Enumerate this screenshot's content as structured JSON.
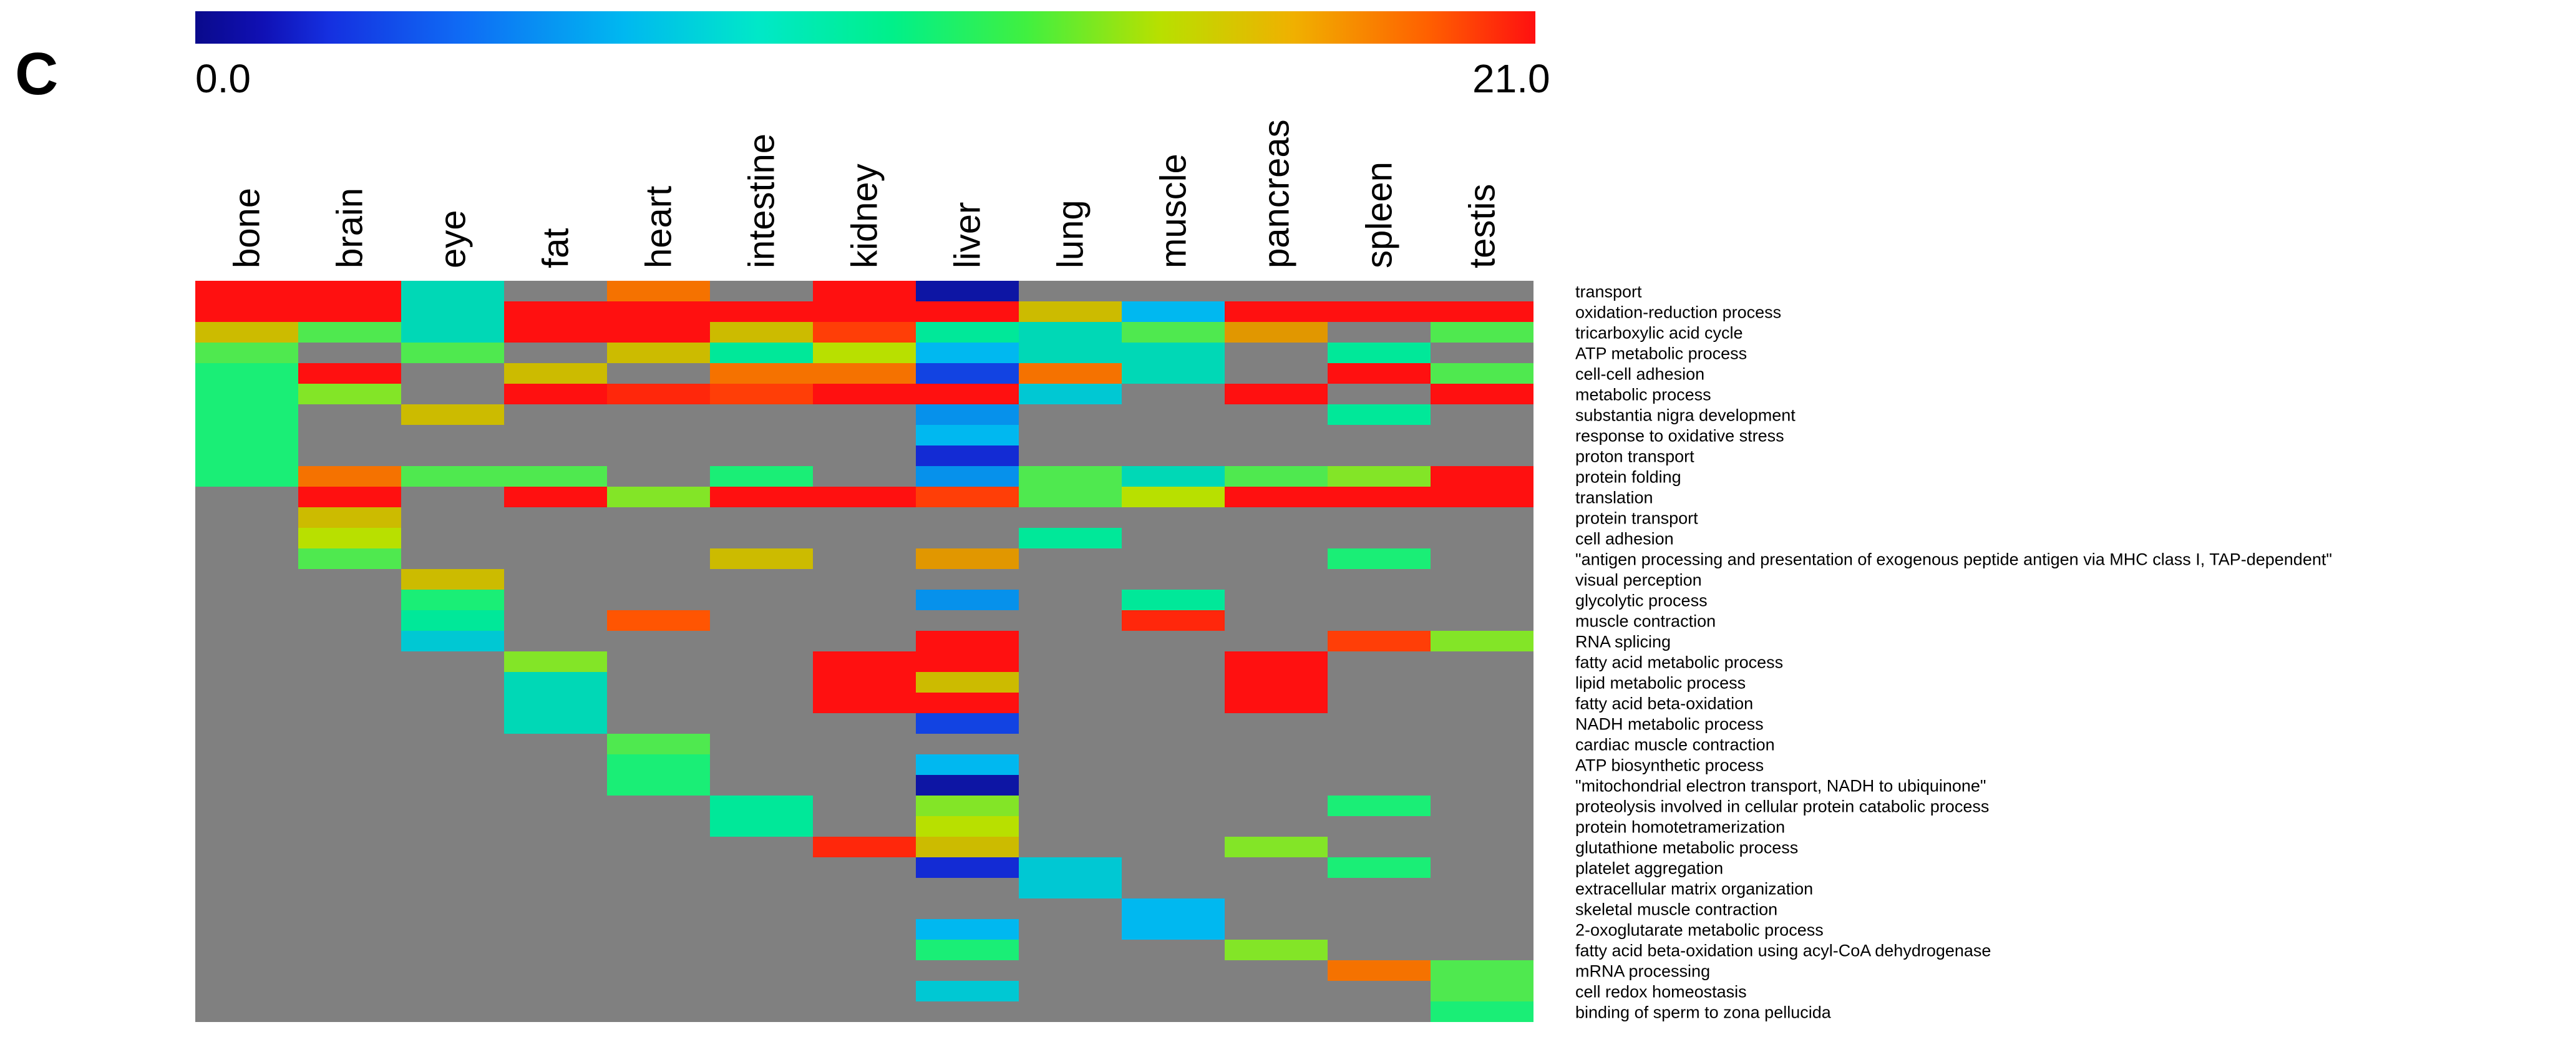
{
  "panel_label": "C",
  "chart_data": {
    "type": "heatmap",
    "title": "",
    "xlabel": "",
    "ylabel": "",
    "color_scale": {
      "min": 0.0,
      "max": 21.0,
      "min_label": "0.0",
      "max_label": "21.0",
      "colors": [
        "#0a0a8c",
        "#1530e0",
        "#00b8f0",
        "#00f08a",
        "#b8e000",
        "#ff6000",
        "#ff1010"
      ],
      "missing_color": "#808080"
    },
    "columns": [
      "bone",
      "brain",
      "eye",
      "fat",
      "heart",
      "intestine",
      "kidney",
      "liver",
      "lung",
      "muscle",
      "pancreas",
      "spleen",
      "testis"
    ],
    "rows": [
      "transport",
      "oxidation-reduction process",
      "tricarboxylic acid cycle",
      "ATP metabolic process",
      "cell-cell adhesion",
      "metabolic process",
      "substantia nigra development",
      "response to oxidative stress",
      "proton transport",
      "protein folding",
      "translation",
      "protein transport",
      "cell adhesion",
      "\"antigen processing and presentation of exogenous peptide antigen via MHC class I, TAP-dependent\"",
      "visual perception",
      "glycolytic process",
      "muscle contraction",
      "RNA splicing",
      "fatty acid metabolic process",
      "lipid metabolic process",
      "fatty acid beta-oxidation",
      "NADH metabolic process",
      "cardiac muscle contraction",
      "ATP biosynthetic process",
      "\"mitochondrial electron transport, NADH to ubiquinone\"",
      "proteolysis involved in cellular protein catabolic process",
      "protein homotetramerization",
      "glutathione metabolic process",
      "platelet aggregation",
      "extracellular matrix organization",
      "skeletal muscle contraction",
      "2-oxoglutarate metabolic process",
      "fatty acid beta-oxidation using acyl-CoA dehydrogenase",
      "mRNA processing",
      "cell redox homeostasis",
      "binding of sperm to zona pellucida"
    ],
    "values": [
      [
        21,
        21,
        9,
        null,
        17,
        null,
        21,
        1,
        null,
        null,
        null,
        null,
        null
      ],
      [
        21,
        21,
        9,
        21,
        21,
        21,
        21,
        21,
        15,
        7,
        21,
        21,
        21
      ],
      [
        15,
        12,
        9,
        21,
        21,
        15,
        19,
        10,
        9,
        12,
        16,
        null,
        12
      ],
      [
        12,
        null,
        12,
        null,
        15,
        10,
        14,
        7,
        9,
        9,
        null,
        10,
        null
      ],
      [
        11,
        21,
        null,
        15,
        null,
        17,
        17,
        4,
        17,
        9,
        null,
        21,
        12
      ],
      [
        11,
        13,
        null,
        21,
        20,
        19,
        21,
        21,
        8,
        null,
        21,
        null,
        21
      ],
      [
        11,
        null,
        15,
        null,
        null,
        null,
        null,
        6,
        null,
        null,
        null,
        10,
        null
      ],
      [
        11,
        null,
        null,
        null,
        null,
        null,
        null,
        7,
        null,
        null,
        null,
        null,
        null
      ],
      [
        11,
        null,
        null,
        null,
        null,
        null,
        null,
        3,
        null,
        null,
        null,
        null,
        null
      ],
      [
        11,
        17,
        12,
        12,
        null,
        11,
        null,
        6,
        12,
        9,
        12,
        13,
        21
      ],
      [
        null,
        21,
        null,
        21,
        13,
        21,
        21,
        19,
        12,
        14,
        21,
        21,
        21
      ],
      [
        null,
        15,
        null,
        null,
        null,
        null,
        null,
        null,
        null,
        null,
        null,
        null,
        null
      ],
      [
        null,
        14,
        null,
        null,
        null,
        null,
        null,
        null,
        10,
        null,
        null,
        null,
        null
      ],
      [
        null,
        12,
        null,
        null,
        null,
        15,
        null,
        16,
        null,
        null,
        null,
        11,
        null
      ],
      [
        null,
        null,
        15,
        null,
        null,
        null,
        null,
        null,
        null,
        null,
        null,
        null,
        null
      ],
      [
        null,
        null,
        11,
        null,
        null,
        null,
        null,
        6,
        null,
        10,
        null,
        null,
        null
      ],
      [
        null,
        null,
        10,
        null,
        18,
        null,
        null,
        null,
        null,
        20,
        null,
        null,
        null
      ],
      [
        null,
        null,
        8,
        null,
        null,
        null,
        null,
        21,
        null,
        null,
        null,
        19,
        13
      ],
      [
        null,
        null,
        null,
        13,
        null,
        null,
        21,
        21,
        null,
        null,
        21,
        null,
        null
      ],
      [
        null,
        null,
        null,
        9,
        null,
        null,
        21,
        15,
        null,
        null,
        21,
        null,
        null
      ],
      [
        null,
        null,
        null,
        9,
        null,
        null,
        21,
        21,
        null,
        null,
        21,
        null,
        null
      ],
      [
        null,
        null,
        null,
        9,
        null,
        null,
        null,
        4,
        null,
        null,
        null,
        null,
        null
      ],
      [
        null,
        null,
        null,
        null,
        12,
        null,
        null,
        null,
        null,
        null,
        null,
        null,
        null
      ],
      [
        null,
        null,
        null,
        null,
        11,
        null,
        null,
        7,
        null,
        null,
        null,
        null,
        null
      ],
      [
        null,
        null,
        null,
        null,
        11,
        null,
        null,
        1,
        null,
        null,
        null,
        null,
        null
      ],
      [
        null,
        null,
        null,
        null,
        null,
        10,
        null,
        13,
        null,
        null,
        null,
        11,
        null
      ],
      [
        null,
        null,
        null,
        null,
        null,
        10,
        null,
        14,
        null,
        null,
        null,
        null,
        null
      ],
      [
        null,
        null,
        null,
        null,
        null,
        null,
        20,
        15,
        null,
        null,
        13,
        null,
        null
      ],
      [
        null,
        null,
        null,
        null,
        null,
        null,
        null,
        3,
        8,
        null,
        null,
        11,
        null
      ],
      [
        null,
        null,
        null,
        null,
        null,
        null,
        null,
        null,
        8,
        null,
        null,
        null,
        null
      ],
      [
        null,
        null,
        null,
        null,
        null,
        null,
        null,
        null,
        null,
        7,
        null,
        null,
        null
      ],
      [
        null,
        null,
        null,
        null,
        null,
        null,
        null,
        7,
        null,
        7,
        null,
        null,
        null
      ],
      [
        null,
        null,
        null,
        null,
        null,
        null,
        null,
        11,
        null,
        null,
        13,
        null,
        null
      ],
      [
        null,
        null,
        null,
        null,
        null,
        null,
        null,
        null,
        null,
        null,
        null,
        17,
        12
      ],
      [
        null,
        null,
        null,
        null,
        null,
        null,
        null,
        8,
        null,
        null,
        null,
        null,
        12
      ],
      [
        null,
        null,
        null,
        null,
        null,
        null,
        null,
        null,
        null,
        null,
        null,
        null,
        11
      ]
    ]
  }
}
